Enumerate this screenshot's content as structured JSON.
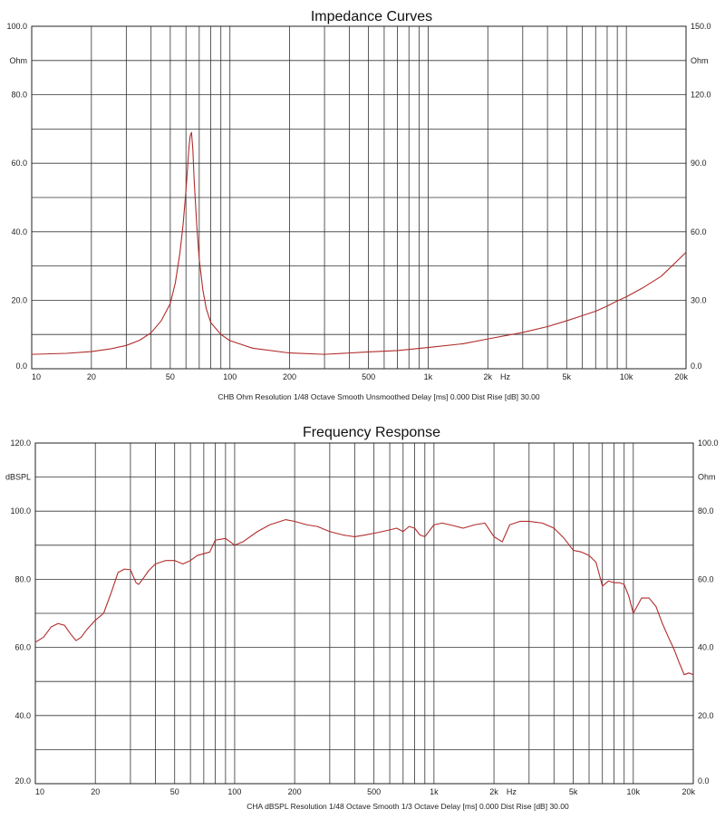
{
  "chart_data": [
    {
      "type": "line",
      "title": "Impedance Curves",
      "left_axis": {
        "unit": "Ohm",
        "ylim": [
          0,
          100
        ],
        "ticks": [
          "100.0",
          "80.0",
          "60.0",
          "40.0",
          "20.0",
          "0.0"
        ]
      },
      "right_axis": {
        "unit": "Ohm",
        "ylim": [
          0,
          150
        ],
        "ticks": [
          "150.0",
          "120.0",
          "90.0",
          "60.0",
          "30.0",
          "0.0"
        ]
      },
      "x_axis": {
        "scale": "log",
        "xlim": [
          10,
          20000
        ],
        "unit": "Hz",
        "ticks": [
          {
            "value": 10,
            "label": "10"
          },
          {
            "value": 20,
            "label": "20"
          },
          {
            "value": 50,
            "label": "50"
          },
          {
            "value": 100,
            "label": "100"
          },
          {
            "value": 200,
            "label": "200"
          },
          {
            "value": 500,
            "label": "500"
          },
          {
            "value": 1000,
            "label": "1k"
          },
          {
            "value": 2000,
            "label": "2k"
          },
          {
            "value": 5000,
            "label": "5k"
          },
          {
            "value": 10000,
            "label": "10k"
          },
          {
            "value": 20000,
            "label": "20k"
          }
        ]
      },
      "grid": true,
      "caption": "CHB Ohm Resolution 1/48 Octave Smooth Unsmoothed Delay [ms] 0.000 Dist Rise [dB] 30.00",
      "series": [
        {
          "axis": "left",
          "color": "#b22b2b",
          "x": [
            10,
            15,
            20,
            25,
            30,
            35,
            40,
            45,
            50,
            53,
            56,
            58,
            60,
            61,
            62,
            63,
            64,
            65,
            66,
            68,
            70,
            73,
            76,
            80,
            90,
            100,
            130,
            200,
            300,
            500,
            700,
            1000,
            1500,
            2000,
            3000,
            4000,
            5000,
            6000,
            7000,
            8000,
            9000,
            10000,
            12000,
            15000,
            20000
          ],
          "y": [
            4.2,
            4.5,
            5.0,
            5.8,
            6.8,
            8.3,
            10.5,
            14,
            19,
            25,
            34,
            42,
            52,
            58,
            64,
            68,
            69,
            64,
            55,
            42,
            32,
            23,
            17.5,
            13.5,
            10.0,
            8.2,
            6.0,
            4.6,
            4.2,
            4.9,
            5.3,
            6.2,
            7.3,
            8.7,
            10.6,
            12.3,
            14.0,
            15.5,
            16.8,
            18.3,
            19.8,
            21.0,
            23.5,
            27.0,
            34.0
          ]
        }
      ]
    },
    {
      "type": "line",
      "title": "Frequency Response",
      "left_axis": {
        "unit": "dBSPL",
        "ylim": [
          20,
          120
        ],
        "ticks": [
          "120.0",
          "100.0",
          "80.0",
          "60.0",
          "40.0",
          "20.0"
        ]
      },
      "right_axis": {
        "unit": "Ohm",
        "ylim": [
          0,
          100
        ],
        "ticks": [
          "100.0",
          "80.0",
          "60.0",
          "40.0",
          "20.0",
          "0.0"
        ]
      },
      "x_axis": {
        "scale": "log",
        "xlim": [
          10,
          20000
        ],
        "unit": "Hz",
        "ticks": [
          {
            "value": 10,
            "label": "10"
          },
          {
            "value": 20,
            "label": "20"
          },
          {
            "value": 50,
            "label": "50"
          },
          {
            "value": 100,
            "label": "100"
          },
          {
            "value": 200,
            "label": "200"
          },
          {
            "value": 500,
            "label": "500"
          },
          {
            "value": 1000,
            "label": "1k"
          },
          {
            "value": 2000,
            "label": "2k"
          },
          {
            "value": 5000,
            "label": "5k"
          },
          {
            "value": 10000,
            "label": "10k"
          },
          {
            "value": 20000,
            "label": "20k"
          }
        ]
      },
      "grid": true,
      "caption": "CHA dBSPL Resolution 1/48 Octave Smooth 1/3 Octave Delay [ms] 0.000 Dist Rise [dB] 30.00",
      "series": [
        {
          "axis": "left",
          "color": "#b22b2b",
          "x": [
            10,
            11,
            12,
            13,
            14,
            15,
            16,
            17,
            18,
            20,
            22,
            24,
            26,
            28,
            30,
            32,
            33,
            35,
            37,
            40,
            45,
            50,
            55,
            60,
            65,
            70,
            75,
            80,
            90,
            100,
            110,
            130,
            150,
            180,
            200,
            230,
            260,
            300,
            350,
            400,
            450,
            500,
            550,
            600,
            650,
            700,
            750,
            800,
            850,
            900,
            1000,
            1100,
            1200,
            1400,
            1600,
            1800,
            2000,
            2200,
            2400,
            2700,
            3000,
            3500,
            4000,
            4500,
            5000,
            5500,
            6000,
            6500,
            7000,
            7500,
            8000,
            8500,
            9000,
            9500,
            10000,
            11000,
            12000,
            13000,
            14000,
            15000,
            16000,
            17000,
            18000,
            19000,
            20000
          ],
          "y": [
            61.5,
            63,
            66,
            67,
            66.5,
            64,
            62,
            63,
            65,
            68,
            70,
            76,
            82,
            83,
            82.8,
            79,
            78.5,
            80.5,
            82.5,
            84.5,
            85.5,
            85.5,
            84.5,
            85.5,
            87,
            87.5,
            88,
            91.5,
            92,
            90,
            91,
            94,
            96,
            97.5,
            97,
            96,
            95.5,
            94,
            93,
            92.5,
            93,
            93.5,
            94,
            94.5,
            95,
            94,
            95.5,
            95,
            93,
            92.5,
            96,
            96.5,
            96,
            95,
            96,
            96.5,
            92.5,
            91,
            96,
            97,
            97,
            96.5,
            95,
            92,
            88.5,
            88,
            87,
            85,
            78,
            79.5,
            79,
            79,
            78.5,
            75,
            70,
            74.5,
            74.5,
            72,
            67,
            63,
            59.5,
            55.5,
            52,
            52.5,
            52
          ]
        }
      ]
    }
  ]
}
